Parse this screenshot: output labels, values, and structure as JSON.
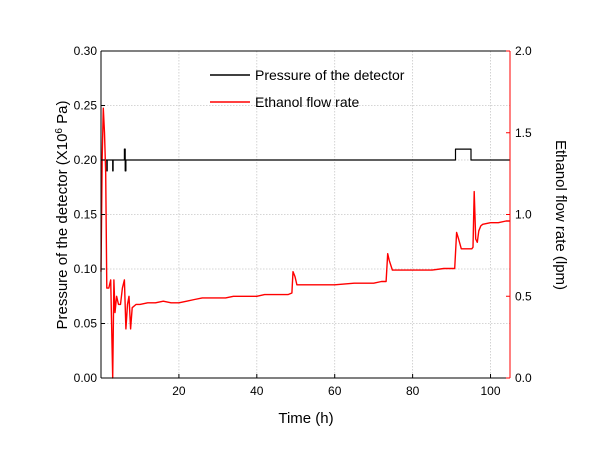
{
  "chart_data": {
    "type": "line",
    "xlabel": "Time (h)",
    "ylabel_left": {
      "main": "Pressure of the detector (X10",
      "sup": "6",
      "tail": " Pa)"
    },
    "ylabel_right": "Ethanol flow rate (lpm)",
    "xlim": [
      0,
      105
    ],
    "ylim_left": [
      0.0,
      0.3
    ],
    "ylim_right": [
      0.0,
      2.0
    ],
    "x_ticks": [
      20,
      40,
      60,
      80,
      100
    ],
    "x_tick_labels": [
      "20",
      "40",
      "60",
      "80",
      "100"
    ],
    "y_left_ticks": [
      0.0,
      0.05,
      0.1,
      0.15,
      0.2,
      0.25,
      0.3
    ],
    "y_left_tick_labels": [
      "0.00",
      "0.05",
      "0.10",
      "0.15",
      "0.20",
      "0.25",
      "0.30"
    ],
    "y_right_ticks": [
      0.0,
      0.5,
      1.0,
      1.5,
      2.0
    ],
    "y_right_tick_labels": [
      "0.0",
      "0.5",
      "1.0",
      "1.5",
      "2.0"
    ],
    "grid": true,
    "legend_position": "top-center",
    "series": [
      {
        "name": "Pressure of the detector",
        "axis": "left",
        "color": "#000000",
        "x": [
          0,
          1.5,
          1.5,
          1.6,
          1.6,
          3.0,
          3.0,
          3.1,
          3.1,
          6.0,
          6.0,
          6.2,
          6.2,
          6.4,
          6.4,
          91.0,
          91.0,
          95.0,
          95.0,
          105.0
        ],
        "y": [
          0.2,
          0.2,
          0.19,
          0.19,
          0.2,
          0.2,
          0.19,
          0.19,
          0.2,
          0.2,
          0.21,
          0.21,
          0.19,
          0.19,
          0.2,
          0.2,
          0.21,
          0.21,
          0.2,
          0.2
        ]
      },
      {
        "name": "Ethanol flow rate",
        "axis": "right",
        "color": "#ff0000",
        "x": [
          0.0,
          0.3,
          0.6,
          0.9,
          1.2,
          1.5,
          2.0,
          2.5,
          3.0,
          3.3,
          3.6,
          4.0,
          4.5,
          5.0,
          5.5,
          6.0,
          6.4,
          6.8,
          7.2,
          7.6,
          8.0,
          9.0,
          10,
          12,
          14,
          16,
          18,
          20,
          22,
          24,
          26,
          28,
          30,
          32,
          34,
          36,
          38,
          40,
          42,
          44,
          46,
          48,
          49,
          49.3,
          49.8,
          50.3,
          51.0,
          55,
          60,
          65,
          70,
          72,
          73.2,
          73.6,
          74.0,
          74.8,
          75.5,
          80,
          85,
          88,
          90,
          90.8,
          91.3,
          91.8,
          92.5,
          93,
          94,
          95.2,
          95.5,
          95.8,
          96.2,
          96.6,
          97.0,
          97.5,
          98,
          100,
          102,
          104,
          105
        ],
        "y": [
          0.65,
          1.35,
          1.65,
          1.5,
          1.25,
          0.55,
          0.55,
          0.6,
          0.0,
          0.6,
          0.4,
          0.5,
          0.45,
          0.45,
          0.55,
          0.6,
          0.3,
          0.45,
          0.5,
          0.3,
          0.43,
          0.45,
          0.45,
          0.46,
          0.46,
          0.47,
          0.46,
          0.46,
          0.47,
          0.48,
          0.49,
          0.49,
          0.49,
          0.49,
          0.5,
          0.5,
          0.5,
          0.5,
          0.51,
          0.51,
          0.51,
          0.51,
          0.52,
          0.65,
          0.62,
          0.57,
          0.57,
          0.57,
          0.57,
          0.58,
          0.58,
          0.59,
          0.59,
          0.76,
          0.72,
          0.66,
          0.66,
          0.66,
          0.66,
          0.67,
          0.67,
          0.67,
          0.89,
          0.85,
          0.79,
          0.79,
          0.79,
          0.79,
          0.8,
          1.14,
          0.85,
          0.83,
          0.9,
          0.93,
          0.94,
          0.95,
          0.95,
          0.96,
          0.96
        ]
      }
    ]
  }
}
